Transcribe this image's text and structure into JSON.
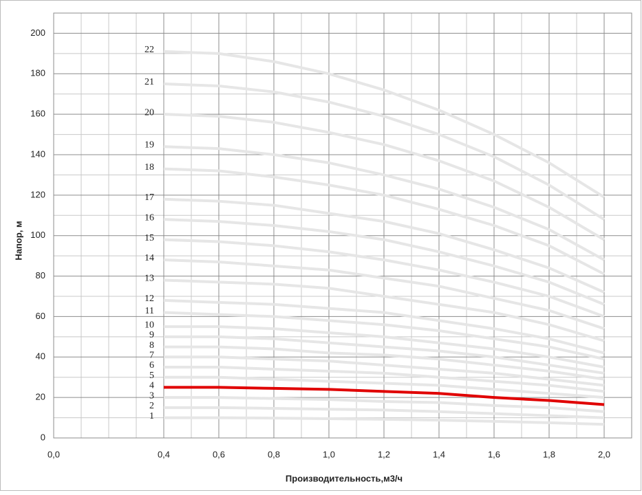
{
  "chart_data": {
    "type": "line",
    "x_label": "Производительность,м3/ч",
    "y_label": "Напор, м",
    "x": [
      0.4,
      0.6,
      0.8,
      1.0,
      1.2,
      1.4,
      1.6,
      1.8,
      2.0
    ],
    "xlim": [
      0,
      2.1
    ],
    "xticks": [
      {
        "value": 0,
        "label": "0,0"
      },
      {
        "value": 0.4,
        "label": "0,4"
      },
      {
        "value": 0.6,
        "label": "0,6"
      },
      {
        "value": 0.8,
        "label": "0,8"
      },
      {
        "value": 1.0,
        "label": "1,0"
      },
      {
        "value": 1.2,
        "label": "1,2"
      },
      {
        "value": 1.4,
        "label": "1,4"
      },
      {
        "value": 1.6,
        "label": "1,6"
      },
      {
        "value": 1.8,
        "label": "1,8"
      },
      {
        "value": 2.0,
        "label": "2,0"
      }
    ],
    "x_minor_ticks": [
      0.1,
      0.2,
      0.3,
      0.5,
      0.7,
      0.9,
      1.1,
      1.3,
      1.5,
      1.7,
      1.9,
      2.1
    ],
    "ylim": [
      0,
      210
    ],
    "yticks": [
      0,
      20,
      40,
      60,
      80,
      100,
      120,
      140,
      160,
      180,
      200
    ],
    "y_minor_ticks": [
      10,
      30,
      50,
      70,
      90,
      110,
      130,
      150,
      170,
      190,
      210
    ],
    "grid": true,
    "series": [
      {
        "name": "1",
        "color": "#e6e6e6",
        "values": [
          10,
          10,
          9.8,
          9.5,
          9.2,
          8.8,
          8.2,
          7.5,
          6.7
        ]
      },
      {
        "name": "2",
        "color": "#e6e6e6",
        "values": [
          15,
          15,
          14.6,
          14.2,
          13.8,
          13,
          12,
          11,
          10
        ]
      },
      {
        "name": "3",
        "color": "#e6e6e6",
        "values": [
          20,
          20,
          19.5,
          19,
          18,
          17.5,
          16,
          15,
          13
        ]
      },
      {
        "name": "4",
        "color": "#e00000",
        "values": [
          25,
          25,
          24.5,
          24,
          23,
          22,
          20,
          18.5,
          16.5
        ]
      },
      {
        "name": "5",
        "color": "#e6e6e6",
        "values": [
          30,
          30,
          29,
          28,
          27,
          26,
          24,
          22,
          20
        ]
      },
      {
        "name": "6",
        "color": "#e6e6e6",
        "values": [
          35,
          35,
          34,
          33,
          32,
          30,
          28,
          26,
          23
        ]
      },
      {
        "name": "7",
        "color": "#e6e6e6",
        "values": [
          40,
          40,
          39,
          38,
          36,
          34,
          32,
          29,
          26
        ]
      },
      {
        "name": "8",
        "color": "#e6e6e6",
        "values": [
          45,
          45,
          44,
          42,
          41,
          39,
          36,
          33,
          29
        ]
      },
      {
        "name": "9",
        "color": "#e6e6e6",
        "values": [
          50,
          50,
          49,
          47,
          45,
          43,
          40,
          36,
          32
        ]
      },
      {
        "name": "10",
        "color": "#e6e6e6",
        "values": [
          55,
          55,
          54,
          52,
          50,
          47,
          44,
          40,
          35
        ]
      },
      {
        "name": "11",
        "color": "#e6e6e6",
        "values": [
          62,
          61,
          60,
          58,
          56,
          53,
          49,
          45,
          39
        ]
      },
      {
        "name": "12",
        "color": "#e6e6e6",
        "values": [
          68,
          67,
          66,
          64,
          62,
          58,
          54,
          49,
          42
        ]
      },
      {
        "name": "13",
        "color": "#e6e6e6",
        "values": [
          78,
          77,
          76,
          74,
          70,
          66,
          62,
          56,
          48
        ]
      },
      {
        "name": "14",
        "color": "#e6e6e6",
        "values": [
          88,
          87,
          85,
          83,
          79,
          75,
          69,
          63,
          54
        ]
      },
      {
        "name": "15",
        "color": "#e6e6e6",
        "values": [
          98,
          97,
          95,
          92,
          88,
          83,
          77,
          70,
          60
        ]
      },
      {
        "name": "16",
        "color": "#e6e6e6",
        "values": [
          108,
          107,
          105,
          102,
          98,
          92,
          85,
          77,
          66
        ]
      },
      {
        "name": "17",
        "color": "#e6e6e6",
        "values": [
          118,
          117,
          115,
          111,
          107,
          101,
          93,
          84,
          72
        ]
      },
      {
        "name": "18",
        "color": "#e6e6e6",
        "values": [
          133,
          132,
          129,
          125,
          120,
          113,
          105,
          95,
          81
        ]
      },
      {
        "name": "19",
        "color": "#e6e6e6",
        "values": [
          144,
          143,
          140,
          136,
          130,
          123,
          114,
          103,
          88
        ]
      },
      {
        "name": "20",
        "color": "#e6e6e6",
        "values": [
          160,
          159,
          156,
          151,
          145,
          137,
          127,
          114,
          98
        ]
      },
      {
        "name": "21",
        "color": "#e6e6e6",
        "values": [
          175,
          174,
          171,
          166,
          159,
          150,
          139,
          125,
          108
        ]
      },
      {
        "name": "22",
        "color": "#e6e6e6",
        "values": [
          191,
          190,
          186,
          180,
          172,
          162,
          150,
          136,
          119
        ]
      }
    ]
  }
}
